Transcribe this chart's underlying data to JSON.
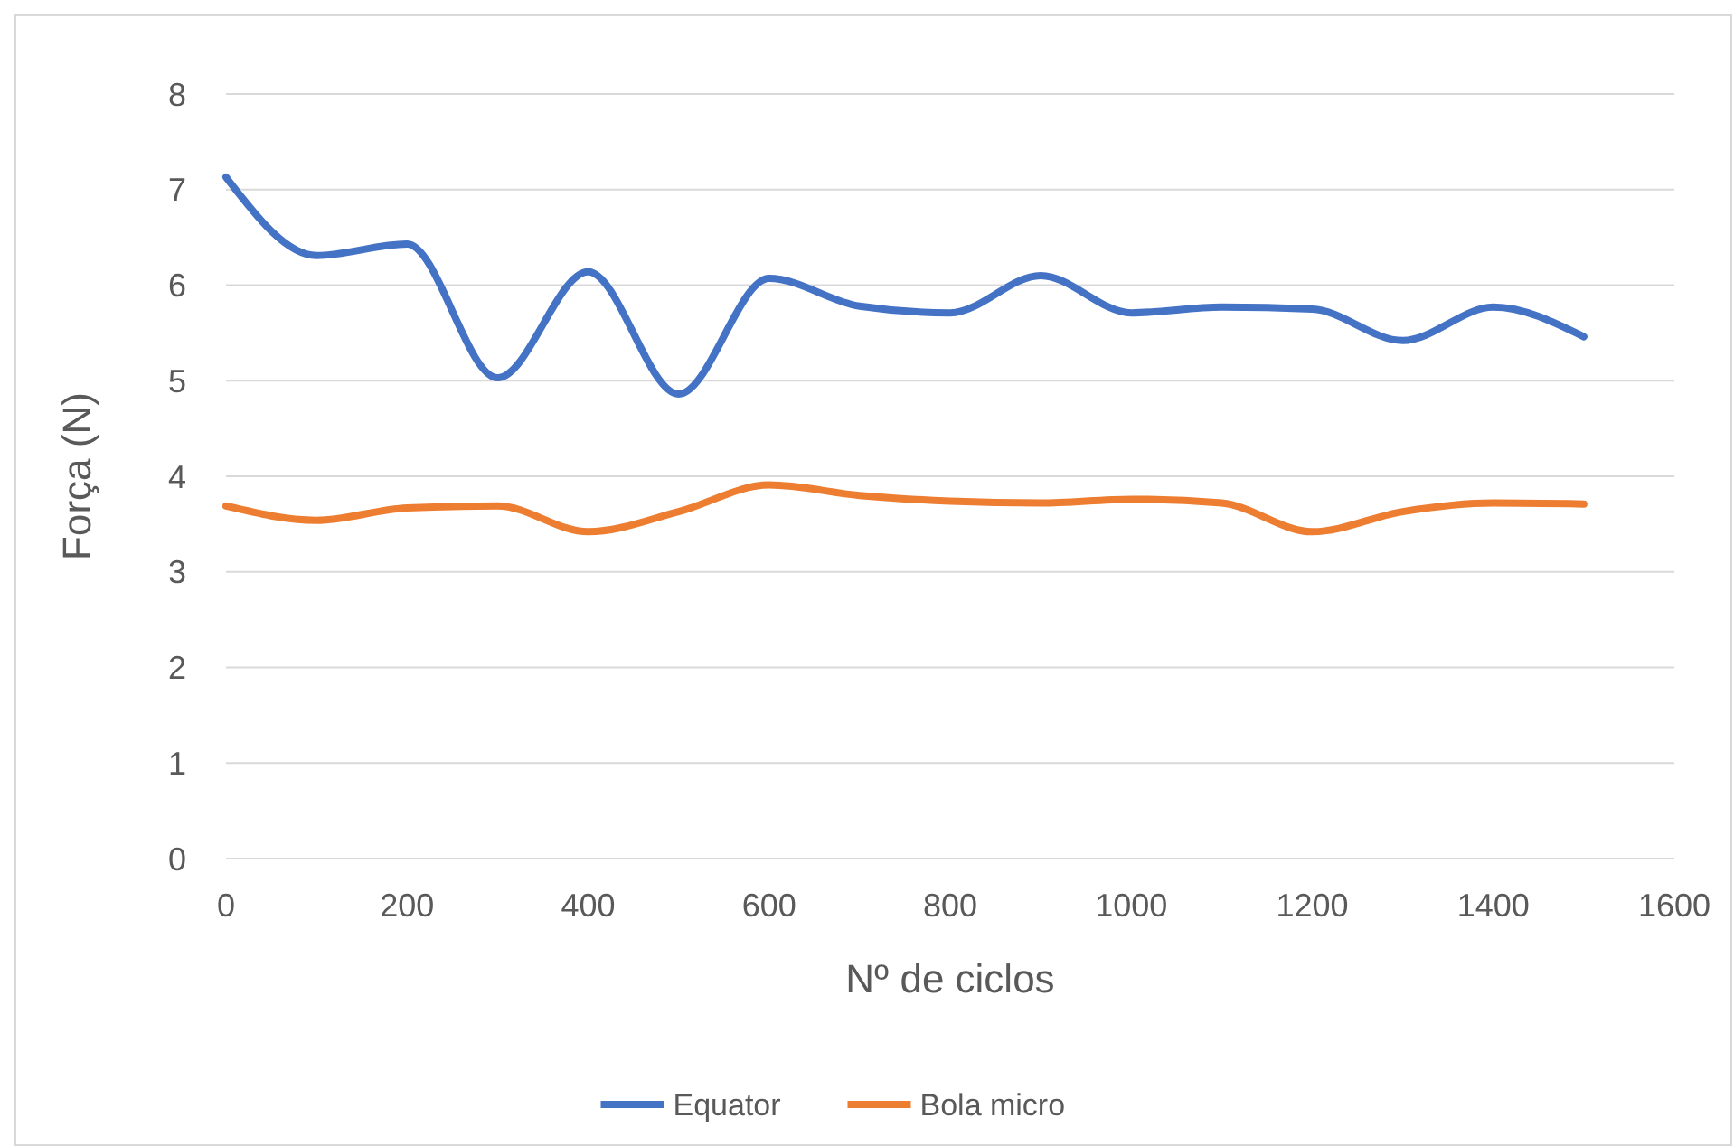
{
  "chart_data": {
    "type": "line",
    "xlabel": "Nº de ciclos",
    "ylabel": "Força (N)",
    "x": [
      0,
      100,
      200,
      300,
      400,
      500,
      600,
      700,
      800,
      900,
      1000,
      1100,
      1200,
      1300,
      1400,
      1500
    ],
    "xlim": [
      0,
      1600
    ],
    "xticks": [
      0,
      200,
      400,
      600,
      800,
      1000,
      1200,
      1400,
      1600
    ],
    "ylim": [
      0,
      8
    ],
    "yticks": [
      0,
      1,
      2,
      3,
      4,
      5,
      6,
      7,
      8
    ],
    "grid": "y",
    "legend": "bottom",
    "marker": "none",
    "line_style": "solid",
    "series": [
      {
        "name": "Equator",
        "color": "#4472c4",
        "values": [
          7.13,
          6.31,
          6.43,
          5.03,
          6.14,
          4.86,
          6.07,
          5.78,
          5.71,
          6.1,
          5.71,
          5.77,
          5.75,
          5.42,
          5.77,
          5.46
        ]
      },
      {
        "name": "Bola micro",
        "color": "#ed7d31",
        "values": [
          3.69,
          3.54,
          3.67,
          3.69,
          3.42,
          3.63,
          3.91,
          3.8,
          3.74,
          3.72,
          3.76,
          3.72,
          3.42,
          3.63,
          3.72,
          3.71
        ]
      }
    ]
  }
}
